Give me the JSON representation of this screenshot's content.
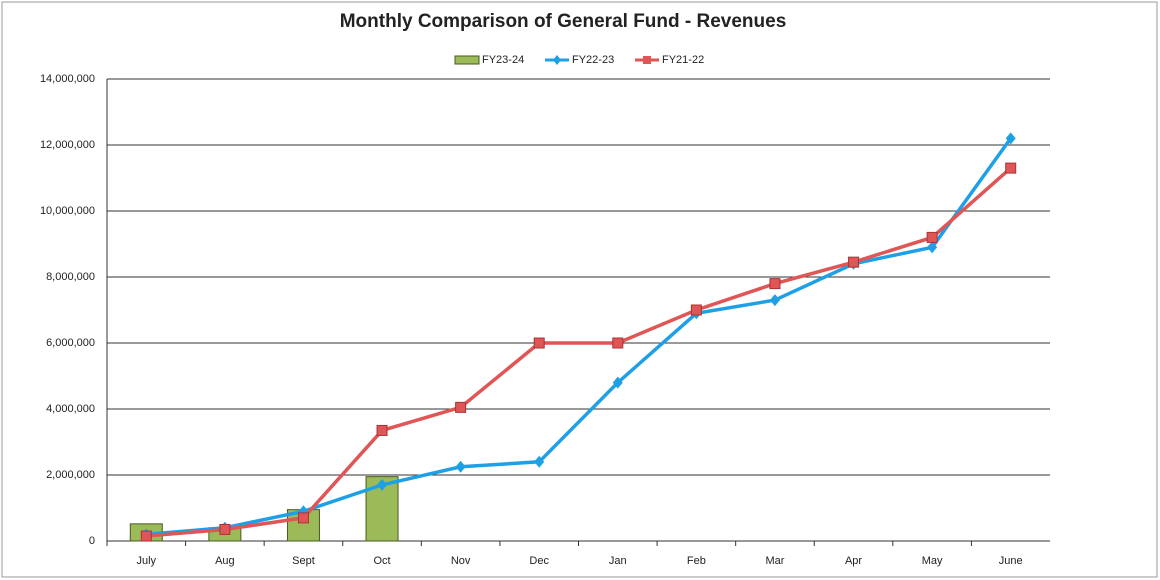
{
  "chart_data": {
    "type": "combo",
    "title": "Monthly Comparison of General Fund - Revenues",
    "categories": [
      "July",
      "Aug",
      "Sept",
      "Oct",
      "Nov",
      "Dec",
      "Jan",
      "Feb",
      "Mar",
      "Apr",
      "May",
      "June"
    ],
    "series": [
      {
        "name": "FY23-24",
        "type": "bar",
        "color": "#9bbb59",
        "values": [
          520000,
          400000,
          950000,
          1950000,
          null,
          null,
          null,
          null,
          null,
          null,
          null,
          null
        ]
      },
      {
        "name": "FY22-23",
        "type": "line",
        "marker": "diamond",
        "color": "#1ea0e6",
        "values": [
          200000,
          400000,
          900000,
          1700000,
          2250000,
          2400000,
          4800000,
          6900000,
          7300000,
          8400000,
          8900000,
          12200000
        ]
      },
      {
        "name": "FY21-22",
        "type": "line",
        "marker": "square",
        "color": "#e05555",
        "values": [
          150000,
          350000,
          700000,
          3350000,
          4050000,
          6000000,
          6000000,
          7000000,
          7800000,
          8450000,
          9200000,
          11300000
        ]
      }
    ],
    "ylim": [
      0,
      14000000
    ],
    "yticks": [
      0,
      {
        "value": 2000000,
        "label": "2,000,000"
      },
      {
        "value": 4000000,
        "label": "4,000,000"
      },
      {
        "value": 6000000,
        "label": "6,000,000"
      },
      {
        "value": 8000000,
        "label": "8,000,000"
      },
      {
        "value": 10000000,
        "label": "10,000,000"
      },
      {
        "value": 12000000,
        "label": "12,000,000"
      },
      {
        "value": 14000000,
        "label": "14,000,000"
      }
    ],
    "grid": true,
    "legend": "top"
  }
}
